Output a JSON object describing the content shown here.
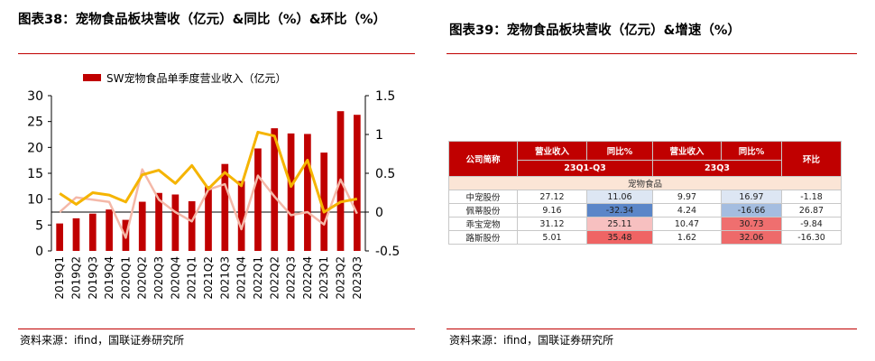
{
  "left": {
    "title": "图表38：宠物食品板块营收（亿元）&同比（%）&环比（%）",
    "source": "资料来源：ifind，国联证券研究所"
  },
  "right": {
    "title": "图表39：宠物食品板块营收（亿元）&增速（%）",
    "source": "资料来源：ifind，国联证券研究所"
  },
  "colors": {
    "bar": "#c00000",
    "yoy": "#f5b400",
    "qoq": "#f4b8a8",
    "accent": "#c00000"
  },
  "chart_data": [
    {
      "type": "bar",
      "title": "",
      "categories": [
        "2019Q1",
        "2019Q2",
        "2019Q3",
        "2019Q4",
        "2020Q1",
        "2020Q2",
        "2020Q3",
        "2020Q4",
        "2021Q1",
        "2021Q2",
        "2021Q3",
        "2021Q4",
        "2022Q1",
        "2022Q2",
        "2022Q3",
        "2022Q4",
        "2023Q1",
        "2023Q2",
        "2023Q3"
      ],
      "series": [
        {
          "name": "SW宠物食品单季度营业收入（亿元）",
          "type": "bar",
          "axis": "left",
          "values": [
            5.3,
            6.3,
            7.2,
            8.0,
            6.0,
            9.5,
            11.2,
            10.9,
            9.6,
            12.5,
            16.8,
            13.5,
            19.8,
            23.7,
            22.7,
            22.6,
            19.0,
            27.0,
            26.3
          ]
        },
        {
          "name": "",
          "type": "line",
          "axis": "right",
          "values": [
            0.24,
            0.1,
            0.25,
            0.22,
            0.13,
            0.48,
            0.54,
            0.37,
            0.6,
            0.3,
            0.51,
            0.34,
            1.03,
            0.98,
            0.33,
            0.67,
            0.0,
            0.13,
            0.17
          ]
        },
        {
          "name": "",
          "type": "line",
          "axis": "right",
          "values": [
            0.0,
            0.19,
            0.16,
            0.13,
            -0.33,
            0.55,
            0.16,
            0.0,
            -0.12,
            0.29,
            0.36,
            -0.22,
            0.47,
            0.2,
            -0.04,
            0.0,
            -0.16,
            0.42,
            -0.02
          ]
        }
      ],
      "y_left": {
        "min": 0,
        "max": 30,
        "ticks": [
          "0",
          "5",
          "10",
          "15",
          "20",
          "25",
          "30"
        ]
      },
      "y_right": {
        "min": -0.5,
        "max": 1.5,
        "ticks": [
          "-0.5",
          "0",
          "0.5",
          "1",
          "1.5"
        ]
      },
      "legend": "top",
      "grid": false
    },
    {
      "type": "table",
      "headers": [
        "公司简称",
        "营业收入",
        "同比%",
        "营业收入",
        "同比%",
        "环比"
      ],
      "periods": [
        "23Q1-Q3",
        "23Q3"
      ],
      "section": "宠物食品",
      "rows": [
        {
          "name": "中宠股份",
          "rev_ytd": "27.12",
          "yoy_ytd": "11.06",
          "rev_q": "9.97",
          "yoy_q": "16.97",
          "qoq": "-1.18",
          "yoy_ytd_color": "#dde6f3",
          "yoy_q_color": "#dde6f3"
        },
        {
          "name": "佩蒂股份",
          "rev_ytd": "9.16",
          "yoy_ytd": "-32.34",
          "rev_q": "4.24",
          "yoy_q": "-16.66",
          "qoq": "26.87",
          "yoy_ytd_color": "#5b86c8",
          "yoy_q_color": "#a4bde0"
        },
        {
          "name": "乖宝宠物",
          "rev_ytd": "31.12",
          "yoy_ytd": "25.11",
          "rev_q": "10.47",
          "yoy_q": "30.73",
          "qoq": "-9.84",
          "yoy_ytd_color": "#f7c0c0",
          "yoy_q_color": "#ef6f6f"
        },
        {
          "name": "路斯股份",
          "rev_ytd": "5.01",
          "yoy_ytd": "35.48",
          "rev_q": "1.62",
          "yoy_q": "32.06",
          "qoq": "-16.30",
          "yoy_ytd_color": "#ef6464",
          "yoy_q_color": "#ee6a6a"
        }
      ]
    }
  ]
}
